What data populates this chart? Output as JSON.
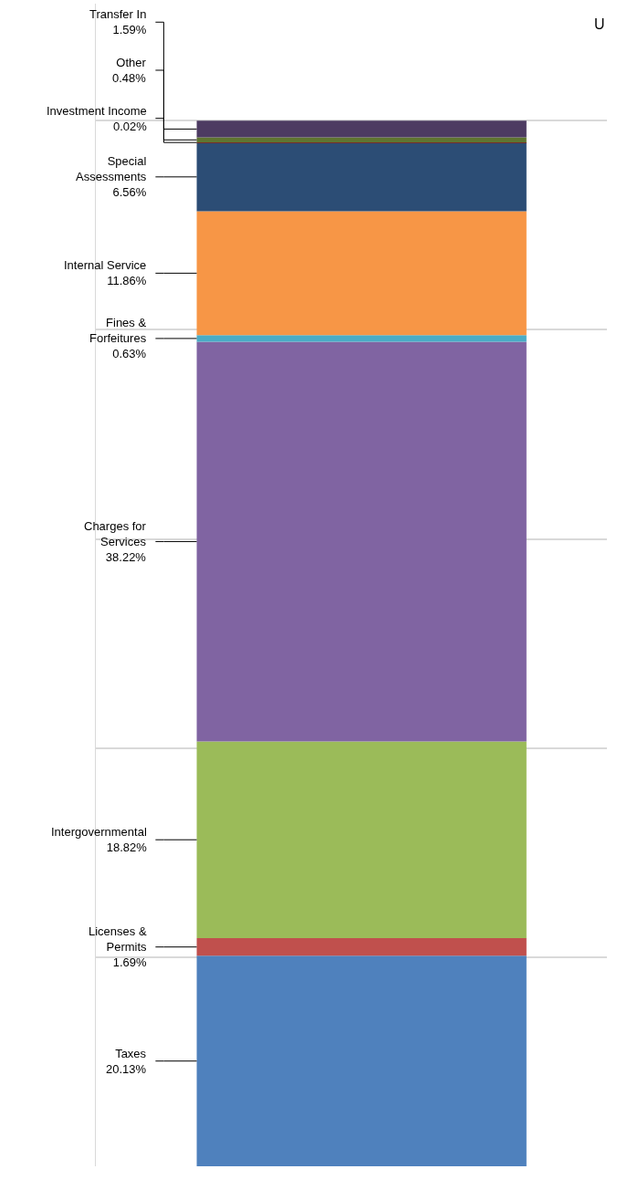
{
  "chart_data": {
    "type": "bar",
    "stacked": true,
    "categories": [
      null
    ],
    "grid": "y",
    "legend": false,
    "tick_labels": false,
    "annotations": [
      "U"
    ],
    "series": [
      {
        "name": "Taxes",
        "color": "#4f81bd",
        "values": [
          20.13
        ],
        "value_labels": [
          "20.13%"
        ]
      },
      {
        "name": "Licenses & Permits",
        "color": "#c0504d",
        "values": [
          1.69
        ],
        "value_labels": [
          "1.69%"
        ]
      },
      {
        "name": "Intergovernmental",
        "color": "#9bbb59",
        "values": [
          18.82
        ],
        "value_labels": [
          "18.82%"
        ]
      },
      {
        "name": "Charges for Services",
        "color": "#8064a2",
        "values": [
          38.22
        ],
        "value_labels": [
          "38.22%"
        ]
      },
      {
        "name": "Fines & Forfeitures",
        "color": "#4bacc6",
        "values": [
          0.63
        ],
        "value_labels": [
          "0.63%"
        ]
      },
      {
        "name": "Internal Service",
        "color": "#f79646",
        "values": [
          11.86
        ],
        "value_labels": [
          "11.86%"
        ]
      },
      {
        "name": "Special Assessments",
        "color": "#2c4d75",
        "values": [
          6.56
        ],
        "value_labels": [
          "6.56%"
        ]
      },
      {
        "name": "Investment Income",
        "color": "#772c2a",
        "values": [
          0.02
        ],
        "value_labels": [
          "0.02%"
        ]
      },
      {
        "name": "Other",
        "color": "#5f7530",
        "values": [
          0.48
        ],
        "value_labels": [
          "0.48%"
        ]
      },
      {
        "name": "Transfer In",
        "color": "#4d3b62",
        "values": [
          1.59
        ],
        "value_labels": [
          "1.59%"
        ]
      }
    ]
  }
}
